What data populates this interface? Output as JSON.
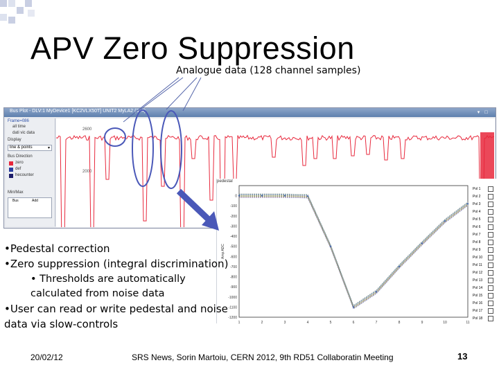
{
  "slide": {
    "title": "APV Zero Suppression",
    "subtitle": "Analogue data (128 channel samples)",
    "bullets": [
      "•Pedestal correction",
      "•Zero suppression (integral discrimination)",
      "• Thresholds are automatically",
      "calculated from noise data",
      "•User can read or write pedestal and noise",
      "data via slow-controls"
    ],
    "footer": {
      "date": "20/02/12",
      "center": "SRS News, Sorin Martoiu, CERN 2012, 9th RD51 Collaboratin Meeting",
      "page": "13"
    }
  },
  "app_window": {
    "title": "Bus Plot - DLV:1 MyDevice1 [KC2VLX50T] UNIT2 MyLA2 (3x4)",
    "side_panel": {
      "frame_label": "Frame=086",
      "source_label": "Display",
      "display_mode": "line & points",
      "checkbox_a": "all time",
      "checkbox_b": "dati vic data",
      "bus_section": "Bus Direction",
      "bus_items": [
        "zero",
        "def",
        "hecounter"
      ],
      "minmax_label": "Min/Max",
      "minmax_cols": [
        "Bus",
        "Add"
      ]
    },
    "y_tick_labels": [
      "2600",
      "2000"
    ]
  },
  "inset_plot": {
    "tag": "pedestal",
    "legend": [
      "Pol 1",
      "Pol 2",
      "Pol 3",
      "Pol 4",
      "Pol 5",
      "Pol 6",
      "Pol 7",
      "Pol 8",
      "Pol 9",
      "Pol 10",
      "Pol 11",
      "Pol 12",
      "Pol 13",
      "Pol 14",
      "Pol 15",
      "Pol 16",
      "Pol 17",
      "Pol 18"
    ]
  },
  "colors": {
    "signal": "#e8283c",
    "annotation": "#5566aa",
    "arrow": "#4a58b8"
  },
  "chart_data": {
    "type": "line",
    "title": "",
    "xlabel": "Time",
    "ylabel": "Amp ADC",
    "x": [
      1,
      2,
      3,
      4,
      5,
      6,
      7,
      8,
      9,
      10,
      11
    ],
    "series": [
      {
        "values": [
          0,
          0,
          0,
          -5,
          -500,
          -1100,
          -950,
          -700,
          -470,
          -250,
          -80
        ]
      }
    ],
    "xlim": [
      1,
      11
    ],
    "ylim": [
      -1200,
      100
    ],
    "grid": false
  }
}
